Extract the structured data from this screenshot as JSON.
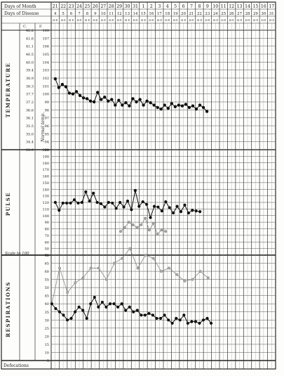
{
  "headers": {
    "days_of_month": "Days of Month",
    "days_of_disease": "Days of Disease",
    "units_c": "C.",
    "units_f": "F.",
    "ms": "M E",
    "defecation": "Defecations",
    "temperature": "TEMPERATURE",
    "pulse": "PULSE",
    "respirations": "RESPIRATIONS",
    "scale_note": "Scale to 100",
    "margin_note": "Normal temp."
  },
  "days_of_month": [
    "21",
    "22",
    "23",
    "24",
    "25",
    "26",
    "27",
    "28",
    "29",
    "30",
    "31",
    "1",
    "2",
    "3",
    "4",
    "5",
    "6",
    "7",
    "8",
    "9",
    "10",
    "11",
    "12",
    "13",
    "14",
    "15",
    "16",
    "17"
  ],
  "days_of_disease": [
    "4",
    "5",
    "6",
    "7",
    "8",
    "9",
    "10",
    "11",
    "12",
    "13",
    "14",
    "15",
    "16",
    "17",
    "18",
    "19",
    "20",
    "21",
    "22",
    "23",
    "24",
    "25",
    "26",
    "27",
    "28",
    "29",
    "30",
    "31"
  ],
  "temp_scale": {
    "celsius": [
      "42.2",
      "41.6",
      "41.1",
      "40.5",
      "40.0",
      "39.4",
      "38.9",
      "38.3",
      "37.7",
      "37.2",
      "36.6",
      "36.1",
      "35.5",
      "35.0",
      "34.4",
      "33.9"
    ],
    "fahrenheit": [
      "108",
      "107",
      "106",
      "105",
      "104",
      "103",
      "102",
      "101",
      "100",
      "99",
      "98",
      "97",
      "96",
      "95",
      "94",
      "93"
    ]
  },
  "pulse_scale": [
    "200",
    "190",
    "180",
    "170",
    "160",
    "150",
    "140",
    "130",
    "120",
    "110",
    "100",
    "90",
    "80",
    "70",
    "60",
    "50",
    "40"
  ],
  "resp_scale": [
    "70",
    "65",
    "60",
    "55",
    "50",
    "45",
    "40",
    "35",
    "30",
    "25",
    "20",
    "15",
    "10",
    "5"
  ],
  "chart_data": [
    {
      "type": "line",
      "title": "TEMPERATURE",
      "x_label": "Days of Month",
      "ylabel": "F.",
      "ylim": [
        93,
        108
      ],
      "series": [
        {
          "values": [
            101.9,
            100.8,
            101.2,
            100.9,
            100.1,
            100.0,
            100.3,
            99.8,
            99.5,
            99.4,
            99.1,
            99.0,
            100.2,
            99.3,
            99.6,
            99.1,
            99.3,
            98.6,
            99.2,
            98.6,
            98.9,
            98.5,
            99.4,
            99.0,
            99.3,
            98.6,
            99.1,
            98.9,
            98.6,
            98.3,
            98.1,
            98.6,
            98.2,
            98.8,
            98.4,
            98.6,
            98.5,
            98.7,
            98.3,
            98.5,
            98.1,
            98.6,
            98.3,
            97.8
          ]
        }
      ]
    },
    {
      "type": "line",
      "title": "PULSE",
      "ylim": [
        40,
        200
      ],
      "series": [
        {
          "values": [
            120,
            108,
            119,
            119,
            119,
            124,
            119,
            120,
            136,
            122,
            134,
            120,
            118,
            113,
            120,
            119,
            111,
            120,
            113,
            122,
            109,
            138,
            114,
            121,
            117,
            97,
            114,
            113,
            107,
            121,
            112,
            104,
            114,
            106,
            116,
            104,
            108,
            107,
            106
          ]
        },
        {
          "values": [
            null,
            null,
            null,
            null,
            null,
            null,
            null,
            null,
            null,
            null,
            null,
            null,
            null,
            null,
            null,
            null,
            76,
            82,
            90,
            86,
            82,
            86,
            96,
            78,
            88,
            72,
            78,
            76
          ]
        }
      ]
    },
    {
      "type": "line",
      "title": "RESPIRATIONS",
      "ylim": [
        5,
        70
      ],
      "series": [
        {
          "values": [
            40,
            62,
            47,
            53,
            56,
            62,
            62,
            55,
            65,
            68,
            74,
            62,
            70,
            68,
            60,
            62,
            58,
            54,
            55,
            60,
            56
          ]
        },
        {
          "values": [
            40,
            37,
            35,
            33,
            30,
            31,
            35,
            38,
            36,
            31,
            40,
            44,
            38,
            41,
            38,
            40,
            40,
            38,
            40,
            36,
            38,
            35,
            36,
            33,
            33,
            34,
            33,
            31,
            31,
            33,
            30,
            28,
            31,
            30,
            33,
            28,
            29,
            29,
            28,
            30,
            31,
            28
          ]
        }
      ]
    }
  ]
}
